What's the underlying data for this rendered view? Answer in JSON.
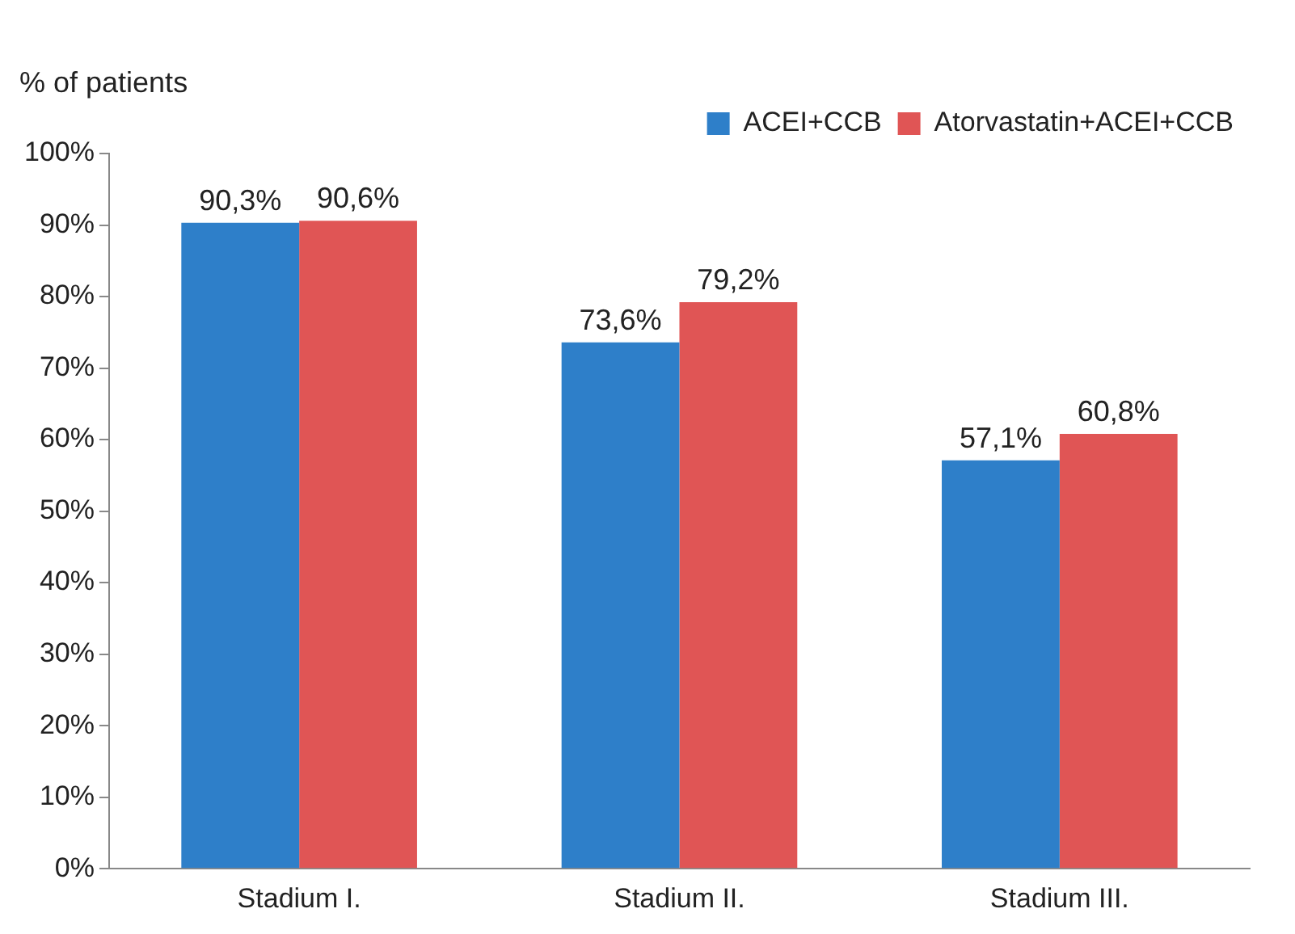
{
  "chart_data": {
    "type": "bar",
    "ylabel": "% of patients",
    "categories": [
      "Stadium I.",
      "Stadium II.",
      "Stadium III."
    ],
    "series": [
      {
        "name": "ACEI+CCB",
        "color": "#2e7fc9",
        "values": [
          90.3,
          73.6,
          57.1
        ],
        "value_labels": [
          "90,3%",
          "73,6%",
          "57,1%"
        ]
      },
      {
        "name": "Atorvastatin+ACEI+CCB",
        "color": "#e05555",
        "values": [
          90.6,
          79.2,
          60.8
        ],
        "value_labels": [
          "90,6%",
          "79,2%",
          "60,8%"
        ]
      }
    ],
    "ylim": [
      0,
      100
    ],
    "yticks": [
      {
        "value": 0,
        "label": "0%"
      },
      {
        "value": 10,
        "label": "10%"
      },
      {
        "value": 20,
        "label": "20%"
      },
      {
        "value": 30,
        "label": "30%"
      },
      {
        "value": 40,
        "label": "40%"
      },
      {
        "value": 50,
        "label": "50%"
      },
      {
        "value": 60,
        "label": "60%"
      },
      {
        "value": 70,
        "label": "70%"
      },
      {
        "value": 80,
        "label": "80%"
      },
      {
        "value": 90,
        "label": "90%"
      },
      {
        "value": 100,
        "label": "100%"
      }
    ],
    "grid": false,
    "legend": "top right"
  }
}
